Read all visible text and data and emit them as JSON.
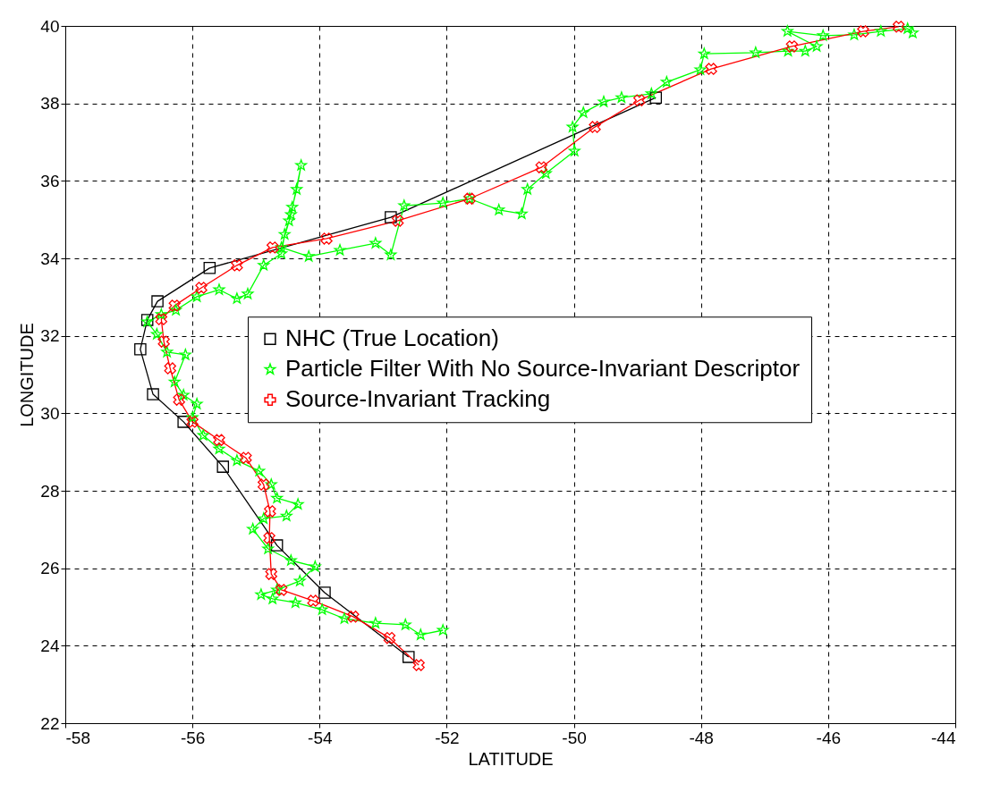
{
  "chart_data": {
    "type": "line",
    "xlabel": "LATITUDE",
    "ylabel": "LONGITUDE",
    "xlim": [
      -58,
      -44
    ],
    "xticks": [
      -58,
      -56,
      -54,
      -52,
      -50,
      -48,
      -46,
      -44
    ],
    "ylim": [
      22,
      40
    ],
    "yticks": [
      22,
      24,
      26,
      28,
      30,
      32,
      34,
      36,
      38,
      40
    ],
    "grid": true,
    "legend": "right",
    "line_style": "solid",
    "series": [
      {
        "name": "NHC (True Location)",
        "color": "#000000",
        "marker": "square",
        "x": [
          -52.6,
          -53.92,
          -54.67,
          -55.52,
          -56.14,
          -56.62,
          -56.82,
          -56.71,
          -56.55,
          -55.73,
          -52.88,
          -48.71
        ],
        "values": [
          23.71,
          25.37,
          26.59,
          28.62,
          29.78,
          30.49,
          31.65,
          32.41,
          32.89,
          33.75,
          35.06,
          38.15
        ]
      },
      {
        "name": "Particle Filter With No Source-Invariant Descriptor",
        "color": "#00ff00",
        "marker": "star",
        "x": [
          -52.06,
          -52.41,
          -52.65,
          -53.12,
          -53.61,
          -53.96,
          -54.38,
          -54.74,
          -54.92,
          -54.67,
          -54.31,
          -54.07,
          -54.45,
          -54.81,
          -55.05,
          -54.88,
          -54.52,
          -54.34,
          -54.67,
          -54.76,
          -54.95,
          -55.3,
          -55.58,
          -55.83,
          -56.0,
          -55.93,
          -56.14,
          -56.28,
          -56.11,
          -56.4,
          -56.56,
          -56.71,
          -56.49,
          -56.26,
          -55.93,
          -55.58,
          -55.3,
          -55.13,
          -54.88,
          -54.6,
          -54.55,
          -54.48,
          -54.43,
          -54.36,
          -54.29,
          -54.45,
          -54.6,
          -54.17,
          -53.68,
          -53.12,
          -52.88,
          -52.67,
          -52.06,
          -51.64,
          -51.18,
          -50.82,
          -50.73,
          -50.44,
          -49.99,
          -50.02,
          -49.85,
          -49.53,
          -49.25,
          -48.78,
          -48.54,
          -48.01,
          -47.95,
          -47.14,
          -46.63,
          -46.36,
          -46.18,
          -46.64,
          -46.08,
          -45.59,
          -45.17,
          -44.75,
          -44.67
        ],
        "values": [
          24.4,
          24.28,
          24.54,
          24.58,
          24.7,
          24.93,
          25.11,
          25.21,
          25.32,
          25.44,
          25.67,
          26.04,
          26.2,
          26.5,
          27.01,
          27.28,
          27.35,
          27.65,
          27.81,
          28.16,
          28.51,
          28.78,
          29.08,
          29.43,
          29.89,
          30.24,
          30.47,
          30.81,
          31.51,
          31.58,
          32.04,
          32.36,
          32.55,
          32.66,
          33.01,
          33.19,
          32.96,
          33.08,
          33.82,
          34.12,
          34.62,
          34.97,
          35.32,
          35.78,
          36.4,
          35.13,
          34.28,
          34.05,
          34.21,
          34.39,
          34.09,
          35.36,
          35.43,
          35.54,
          35.25,
          35.15,
          35.78,
          36.19,
          36.77,
          37.39,
          37.76,
          38.04,
          38.15,
          38.25,
          38.55,
          38.87,
          39.28,
          39.31,
          39.35,
          39.35,
          39.47,
          39.86,
          39.75,
          39.77,
          39.86,
          39.93,
          39.82
        ]
      },
      {
        "name": "Source-Invariant Tracking",
        "color": "#ff0000",
        "marker": "cross",
        "x": [
          -52.44,
          -52.9,
          -53.47,
          -54.1,
          -54.6,
          -54.76,
          -54.79,
          -54.78,
          -54.88,
          -55.16,
          -55.58,
          -56.0,
          -56.21,
          -56.35,
          -56.45,
          -56.49,
          -56.28,
          -55.86,
          -55.3,
          -54.74,
          -53.89,
          -52.77,
          -51.64,
          -50.51,
          -49.67,
          -48.97,
          -47.84,
          -46.57,
          -45.45,
          -44.89
        ],
        "values": [
          23.5,
          24.2,
          24.75,
          25.16,
          25.44,
          25.85,
          26.78,
          27.47,
          28.16,
          28.85,
          29.31,
          29.78,
          30.35,
          31.16,
          31.85,
          32.43,
          32.78,
          33.24,
          33.82,
          34.28,
          34.51,
          34.97,
          35.54,
          36.35,
          37.39,
          38.08,
          38.89,
          39.47,
          39.86,
          39.98
        ]
      }
    ]
  }
}
